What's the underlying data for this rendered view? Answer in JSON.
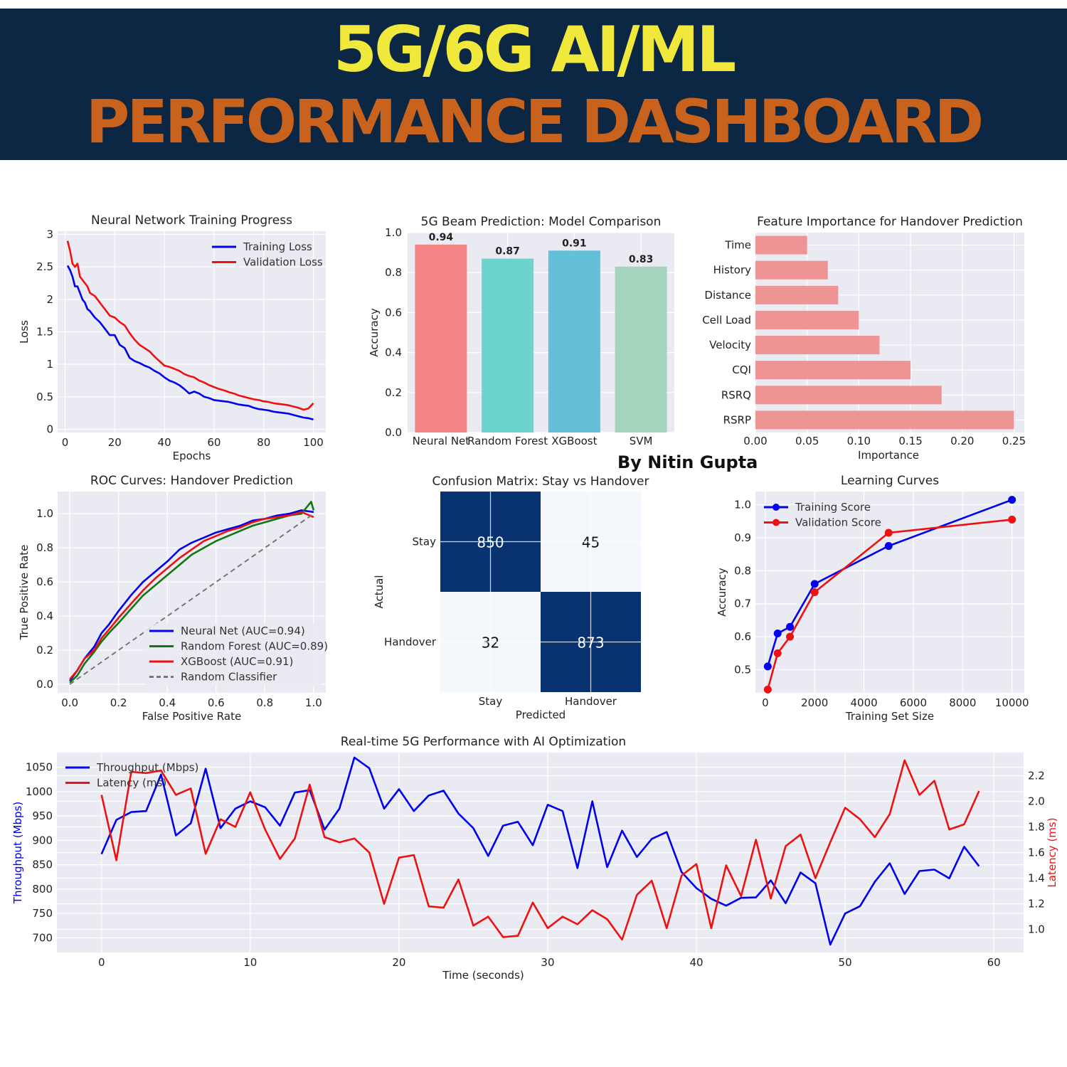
{
  "header": {
    "line1": "5G/6G AI/ML",
    "line2": "PERFORMANCE DASHBOARD",
    "line1_color": "#f0e83a",
    "line2_color": "#c8621c",
    "background": "#0b2744"
  },
  "author": "By Nitin Gupta",
  "chart_data": [
    {
      "id": "training",
      "type": "line",
      "title": "Neural Network Training Progress",
      "xlabel": "Epochs",
      "ylabel": "Loss",
      "xlim": [
        -3,
        105
      ],
      "ylim": [
        -0.05,
        3.05
      ],
      "xticks": [
        0,
        20,
        40,
        60,
        80,
        100
      ],
      "yticks": [
        0.0,
        0.5,
        1.0,
        1.5,
        2.0,
        2.5,
        3.0
      ],
      "grid": true,
      "legend": "top-right",
      "series": [
        {
          "name": "Training Loss",
          "color": "#0000ee",
          "x": [
            1,
            2,
            3,
            4,
            5,
            6,
            7,
            8,
            9,
            10,
            12,
            14,
            16,
            18,
            20,
            22,
            24,
            26,
            28,
            30,
            32,
            34,
            36,
            38,
            40,
            42,
            44,
            46,
            48,
            50,
            52,
            54,
            56,
            58,
            60,
            62,
            64,
            66,
            68,
            70,
            72,
            74,
            76,
            78,
            80,
            82,
            84,
            86,
            88,
            90,
            92,
            94,
            96,
            98,
            100
          ],
          "y": [
            2.52,
            2.45,
            2.35,
            2.2,
            2.2,
            2.1,
            2.0,
            1.95,
            1.85,
            1.82,
            1.72,
            1.65,
            1.55,
            1.45,
            1.45,
            1.3,
            1.25,
            1.1,
            1.05,
            1.02,
            0.98,
            0.95,
            0.9,
            0.86,
            0.8,
            0.75,
            0.72,
            0.68,
            0.62,
            0.55,
            0.58,
            0.55,
            0.5,
            0.48,
            0.45,
            0.44,
            0.43,
            0.42,
            0.4,
            0.38,
            0.37,
            0.36,
            0.33,
            0.31,
            0.3,
            0.29,
            0.27,
            0.26,
            0.25,
            0.24,
            0.22,
            0.2,
            0.18,
            0.17,
            0.15
          ]
        },
        {
          "name": "Validation Loss",
          "color": "#ee1111",
          "x": [
            1,
            2,
            3,
            4,
            5,
            6,
            7,
            8,
            9,
            10,
            12,
            14,
            16,
            18,
            20,
            22,
            24,
            26,
            28,
            30,
            32,
            34,
            36,
            38,
            40,
            42,
            44,
            46,
            48,
            50,
            52,
            54,
            56,
            58,
            60,
            62,
            64,
            66,
            68,
            70,
            72,
            74,
            76,
            78,
            80,
            82,
            84,
            86,
            88,
            90,
            92,
            94,
            96,
            98,
            100
          ],
          "y": [
            2.9,
            2.75,
            2.55,
            2.5,
            2.55,
            2.35,
            2.3,
            2.25,
            2.2,
            2.1,
            2.05,
            1.95,
            1.85,
            1.75,
            1.72,
            1.65,
            1.6,
            1.48,
            1.38,
            1.3,
            1.25,
            1.2,
            1.12,
            1.05,
            0.98,
            0.96,
            0.93,
            0.9,
            0.85,
            0.82,
            0.8,
            0.75,
            0.72,
            0.68,
            0.65,
            0.62,
            0.6,
            0.57,
            0.55,
            0.52,
            0.5,
            0.48,
            0.46,
            0.45,
            0.43,
            0.42,
            0.4,
            0.39,
            0.38,
            0.37,
            0.35,
            0.33,
            0.3,
            0.32,
            0.4
          ]
        }
      ]
    },
    {
      "id": "beam",
      "type": "bar",
      "title": "5G Beam Prediction: Model Comparison",
      "ylabel": "Accuracy",
      "categories": [
        "Neural Net",
        "Random Forest",
        "XGBoost",
        "SVM"
      ],
      "values": [
        0.94,
        0.87,
        0.91,
        0.83
      ],
      "value_labels": [
        "0.94",
        "0.87",
        "0.91",
        "0.83"
      ],
      "colors": [
        "#f88585",
        "#6cd4cc",
        "#64c0d8",
        "#a4d4bc"
      ],
      "ylim": [
        0,
        1.0
      ],
      "yticks": [
        0.0,
        0.2,
        0.4,
        0.6,
        0.8,
        1.0
      ]
    },
    {
      "id": "features",
      "type": "bar",
      "orientation": "horizontal",
      "title": "Feature Importance for Handover Prediction",
      "xlabel": "Importance",
      "categories": [
        "RSRP",
        "RSRQ",
        "CQI",
        "Velocity",
        "Cell Load",
        "Distance",
        "History",
        "Time"
      ],
      "values": [
        0.25,
        0.18,
        0.15,
        0.12,
        0.1,
        0.08,
        0.07,
        0.05
      ],
      "color": "#ee9494",
      "xlim": [
        0,
        0.26
      ],
      "xticks": [
        0.0,
        0.05,
        0.1,
        0.15,
        0.2,
        0.25
      ],
      "xtick_labels": [
        "0.00",
        "0.05",
        "0.10",
        "0.15",
        "0.20",
        "0.25"
      ]
    },
    {
      "id": "roc",
      "type": "line",
      "title": "ROC Curves: Handover Prediction",
      "xlabel": "False Positive Rate",
      "ylabel": "True Positive Rate",
      "xlim": [
        -0.05,
        1.05
      ],
      "ylim": [
        -0.05,
        1.13
      ],
      "xticks": [
        0.0,
        0.2,
        0.4,
        0.6,
        0.8,
        1.0
      ],
      "yticks": [
        0.0,
        0.2,
        0.4,
        0.6,
        0.8,
        1.0
      ],
      "legend": "lower-right",
      "series": [
        {
          "name": "Neural Net (AUC=0.94)",
          "color": "#0000ee",
          "x": [
            0.0,
            0.03,
            0.06,
            0.1,
            0.13,
            0.16,
            0.2,
            0.25,
            0.3,
            0.35,
            0.4,
            0.45,
            0.5,
            0.55,
            0.6,
            0.65,
            0.7,
            0.75,
            0.8,
            0.85,
            0.9,
            0.95,
            1.0
          ],
          "y": [
            0.02,
            0.08,
            0.15,
            0.22,
            0.3,
            0.35,
            0.43,
            0.52,
            0.6,
            0.66,
            0.72,
            0.79,
            0.83,
            0.86,
            0.89,
            0.91,
            0.93,
            0.96,
            0.97,
            0.99,
            1.0,
            1.02,
            1.01
          ]
        },
        {
          "name": "Random Forest (AUC=0.89)",
          "color": "#117711",
          "x": [
            0.0,
            0.03,
            0.06,
            0.1,
            0.13,
            0.16,
            0.2,
            0.25,
            0.3,
            0.35,
            0.4,
            0.45,
            0.5,
            0.55,
            0.6,
            0.65,
            0.7,
            0.75,
            0.8,
            0.85,
            0.9,
            0.95,
            0.99,
            1.0
          ],
          "y": [
            0.01,
            0.05,
            0.12,
            0.19,
            0.25,
            0.3,
            0.36,
            0.44,
            0.52,
            0.58,
            0.64,
            0.7,
            0.76,
            0.8,
            0.84,
            0.87,
            0.9,
            0.93,
            0.95,
            0.97,
            0.99,
            1.0,
            1.07,
            1.02
          ]
        },
        {
          "name": "XGBoost (AUC=0.91)",
          "color": "#ee1111",
          "x": [
            0.0,
            0.03,
            0.06,
            0.1,
            0.13,
            0.16,
            0.2,
            0.25,
            0.3,
            0.35,
            0.4,
            0.45,
            0.5,
            0.55,
            0.6,
            0.65,
            0.7,
            0.75,
            0.8,
            0.85,
            0.9,
            0.95,
            1.0
          ],
          "y": [
            0.03,
            0.08,
            0.15,
            0.2,
            0.27,
            0.32,
            0.39,
            0.47,
            0.55,
            0.62,
            0.68,
            0.74,
            0.79,
            0.84,
            0.87,
            0.9,
            0.92,
            0.95,
            0.97,
            0.98,
            0.99,
            1.01,
            0.98
          ]
        },
        {
          "name": "Random Classifier",
          "color": "#777777",
          "dashed": true,
          "x": [
            0,
            1
          ],
          "y": [
            0,
            1
          ]
        }
      ]
    },
    {
      "id": "confusion",
      "type": "heatmap",
      "title": "Confusion Matrix: Stay vs Handover",
      "xlabel": "Predicted",
      "ylabel": "Actual",
      "x_categories": [
        "Stay",
        "Handover"
      ],
      "y_categories": [
        "Stay",
        "Handover"
      ],
      "matrix": [
        [
          850,
          45
        ],
        [
          32,
          873
        ]
      ],
      "cell_labels": [
        [
          "850",
          "45"
        ],
        [
          "32",
          "873"
        ]
      ],
      "colors": {
        "high": "#083370",
        "low": "#f4f8fd"
      }
    },
    {
      "id": "learning",
      "type": "line",
      "title": "Learning Curves",
      "xlabel": "Training Set Size",
      "ylabel": "Accuracy",
      "xlim": [
        -400,
        10500
      ],
      "ylim": [
        0.43,
        1.04
      ],
      "xticks": [
        0,
        2000,
        4000,
        6000,
        8000,
        10000
      ],
      "yticks": [
        0.5,
        0.6,
        0.7,
        0.8,
        0.9,
        1.0
      ],
      "legend": "top-left",
      "series": [
        {
          "name": "Training Score",
          "color": "#0000ee",
          "x": [
            100,
            500,
            1000,
            2000,
            5000,
            10000
          ],
          "y": [
            0.51,
            0.61,
            0.63,
            0.76,
            0.875,
            1.015
          ]
        },
        {
          "name": "Validation Score",
          "color": "#ee1111",
          "x": [
            100,
            500,
            1000,
            2000,
            5000,
            10000
          ],
          "y": [
            0.44,
            0.55,
            0.6,
            0.735,
            0.915,
            0.955
          ]
        }
      ]
    },
    {
      "id": "realtime",
      "type": "line",
      "title": "Real-time 5G Performance with AI Optimization",
      "xlabel": "Time (seconds)",
      "ylabel": "Throughput (Mbps)",
      "y2label": "Latency (ms)",
      "xlim": [
        -3,
        62
      ],
      "ylim": [
        670,
        1080
      ],
      "y2lim": [
        0.82,
        2.38
      ],
      "xticks": [
        0,
        10,
        20,
        30,
        40,
        50,
        60
      ],
      "yticks": [
        700,
        750,
        800,
        850,
        900,
        950,
        1000,
        1050
      ],
      "y2ticks": [
        1.0,
        1.2,
        1.4,
        1.6,
        1.8,
        2.0,
        2.2
      ],
      "legend": "top-left",
      "series": [
        {
          "name": "Throughput (Mbps)",
          "color": "#0000ee",
          "axis": "left",
          "x": [
            0,
            1,
            2,
            3,
            4,
            5,
            6,
            7,
            8,
            9,
            10,
            11,
            12,
            13,
            14,
            15,
            16,
            17,
            18,
            19,
            20,
            21,
            22,
            23,
            24,
            25,
            26,
            27,
            28,
            29,
            30,
            31,
            32,
            33,
            34,
            35,
            36,
            37,
            38,
            39,
            40,
            41,
            42,
            43,
            44,
            45,
            46,
            47,
            48,
            49,
            50,
            51,
            52,
            53,
            54,
            55,
            56,
            57,
            58,
            59
          ],
          "y": [
            872,
            942,
            958,
            960,
            1035,
            910,
            935,
            1047,
            925,
            965,
            980,
            968,
            930,
            998,
            1003,
            922,
            965,
            1070,
            1048,
            965,
            1005,
            960,
            992,
            1002,
            955,
            925,
            868,
            930,
            938,
            890,
            973,
            960,
            843,
            980,
            845,
            920,
            866,
            903,
            917,
            835,
            802,
            780,
            766,
            782,
            783,
            818,
            771,
            834,
            812,
            686,
            750,
            765,
            815,
            853,
            790,
            837,
            840,
            822,
            887,
            847
          ]
        },
        {
          "name": "Latency (ms)",
          "color": "#ee1111",
          "axis": "right",
          "x": [
            0,
            1,
            2,
            3,
            4,
            5,
            6,
            7,
            8,
            9,
            10,
            11,
            12,
            13,
            14,
            15,
            16,
            17,
            18,
            19,
            20,
            21,
            22,
            23,
            24,
            25,
            26,
            27,
            28,
            29,
            30,
            31,
            32,
            33,
            34,
            35,
            36,
            37,
            38,
            39,
            40,
            41,
            42,
            43,
            44,
            45,
            46,
            47,
            48,
            49,
            50,
            51,
            52,
            53,
            54,
            55,
            56,
            57,
            58,
            59
          ],
          "y": [
            2.05,
            1.54,
            2.23,
            2.22,
            2.24,
            2.05,
            2.1,
            1.59,
            1.86,
            1.8,
            2.07,
            1.78,
            1.55,
            1.71,
            2.13,
            1.72,
            1.68,
            1.71,
            1.6,
            1.2,
            1.56,
            1.58,
            1.18,
            1.17,
            1.39,
            1.03,
            1.1,
            0.94,
            0.95,
            1.21,
            1.01,
            1.1,
            1.04,
            1.15,
            1.08,
            0.92,
            1.27,
            1.38,
            1.01,
            1.42,
            1.51,
            1.01,
            1.5,
            1.26,
            1.7,
            1.24,
            1.65,
            1.74,
            1.4,
            1.68,
            1.95,
            1.86,
            1.72,
            1.9,
            2.32,
            2.05,
            2.16,
            1.78,
            1.82,
            2.08
          ]
        }
      ]
    }
  ]
}
